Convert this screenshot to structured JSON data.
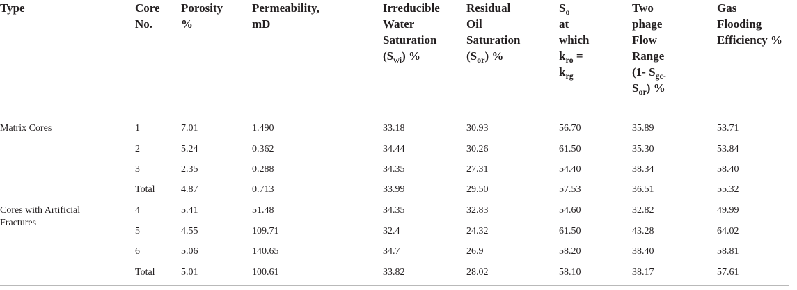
{
  "headers": [
    {
      "id": "type",
      "parts": [
        {
          "t": "Type"
        }
      ]
    },
    {
      "id": "core",
      "parts": [
        {
          "t": "Core"
        },
        {
          "br": true
        },
        {
          "t": "No."
        }
      ]
    },
    {
      "id": "porosity",
      "parts": [
        {
          "t": "Porosity"
        },
        {
          "br": true
        },
        {
          "t": "%"
        }
      ]
    },
    {
      "id": "permeability",
      "parts": [
        {
          "t": "Permeability,"
        },
        {
          "br": true
        },
        {
          "t": "mD"
        }
      ]
    },
    {
      "id": "swi",
      "parts": [
        {
          "t": "Irreducible"
        },
        {
          "br": true
        },
        {
          "t": "Water"
        },
        {
          "br": true
        },
        {
          "t": "Saturation"
        },
        {
          "br": true
        },
        {
          "t": "(S"
        },
        {
          "sub": "wi"
        },
        {
          "t": ") %"
        }
      ]
    },
    {
      "id": "sor",
      "parts": [
        {
          "t": "Residual"
        },
        {
          "br": true
        },
        {
          "t": "Oil"
        },
        {
          "br": true
        },
        {
          "t": "Saturation"
        },
        {
          "br": true
        },
        {
          "t": "(S"
        },
        {
          "sub": "or"
        },
        {
          "t": ") %"
        }
      ]
    },
    {
      "id": "so",
      "parts": [
        {
          "t": "S"
        },
        {
          "sub": "o"
        },
        {
          "br": true
        },
        {
          "t": "at"
        },
        {
          "br": true
        },
        {
          "t": "which"
        },
        {
          "br": true
        },
        {
          "t": "k"
        },
        {
          "sub": "ro"
        },
        {
          "t": " ="
        },
        {
          "br": true
        },
        {
          "t": "k"
        },
        {
          "sub": "rg"
        }
      ]
    },
    {
      "id": "twophase",
      "parts": [
        {
          "t": "Two"
        },
        {
          "br": true
        },
        {
          "t": "phage"
        },
        {
          "br": true
        },
        {
          "t": "Flow"
        },
        {
          "br": true
        },
        {
          "t": "Range"
        },
        {
          "br": true
        },
        {
          "t": "(1- S"
        },
        {
          "sub": "gc-"
        },
        {
          "br": true
        },
        {
          "t": "S"
        },
        {
          "sub": "or"
        },
        {
          "t": ") %"
        }
      ]
    },
    {
      "id": "efficiency",
      "parts": [
        {
          "t": "Gas"
        },
        {
          "br": true
        },
        {
          "t": "Flooding"
        },
        {
          "br": true
        },
        {
          "t": "Efficiency %"
        }
      ]
    }
  ],
  "groups": [
    {
      "type": "Matrix Cores",
      "rows": [
        [
          "1",
          "7.01",
          "1.490",
          "33.18",
          "30.93",
          "56.70",
          "35.89",
          "53.71"
        ],
        [
          "2",
          "5.24",
          "0.362",
          "34.44",
          "30.26",
          "61.50",
          "35.30",
          "53.84"
        ],
        [
          "3",
          "2.35",
          "0.288",
          "34.35",
          "27.31",
          "54.40",
          "38.34",
          "58.40"
        ],
        [
          "Total",
          "4.87",
          "0.713",
          "33.99",
          "29.50",
          "57.53",
          "36.51",
          "55.32"
        ]
      ]
    },
    {
      "type": "Cores with Artificial Fractures",
      "rows": [
        [
          "4",
          "5.41",
          "51.48",
          "34.35",
          "32.83",
          "54.60",
          "32.82",
          "49.99"
        ],
        [
          "5",
          "4.55",
          "109.71",
          "32.4",
          "24.32",
          "61.50",
          "43.28",
          "64.02"
        ],
        [
          "6",
          "5.06",
          "140.65",
          "34.7",
          "26.9",
          "58.20",
          "38.40",
          "58.81"
        ],
        [
          "Total",
          "5.01",
          "100.61",
          "33.82",
          "28.02",
          "58.10",
          "38.17",
          "57.61"
        ]
      ]
    }
  ]
}
